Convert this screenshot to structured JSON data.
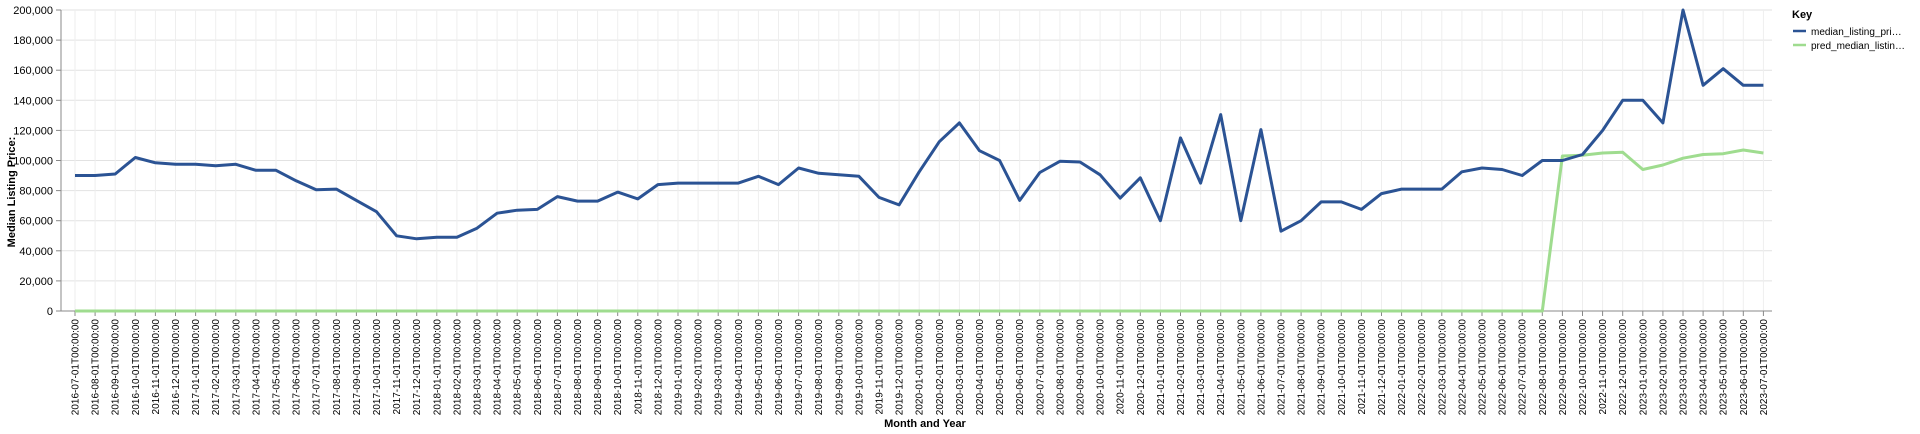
{
  "chart_data": {
    "type": "line",
    "xlabel": "Month and Year",
    "ylabel": "Median Listing Price:",
    "ylim": [
      0,
      200000
    ],
    "yticks": [
      "0",
      "20,000",
      "40,000",
      "60,000",
      "80,000",
      "100,000",
      "120,000",
      "140,000",
      "160,000",
      "180,000",
      "200,000"
    ],
    "grid": true,
    "legend": {
      "title": "Key",
      "position": "top-right"
    },
    "x": [
      "2016-07-01T00:00:00",
      "2016-08-01T00:00:00",
      "2016-09-01T00:00:00",
      "2016-10-01T00:00:00",
      "2016-11-01T00:00:00",
      "2016-12-01T00:00:00",
      "2017-01-01T00:00:00",
      "2017-02-01T00:00:00",
      "2017-03-01T00:00:00",
      "2017-04-01T00:00:00",
      "2017-05-01T00:00:00",
      "2017-06-01T00:00:00",
      "2017-07-01T00:00:00",
      "2017-08-01T00:00:00",
      "2017-09-01T00:00:00",
      "2017-10-01T00:00:00",
      "2017-11-01T00:00:00",
      "2017-12-01T00:00:00",
      "2018-01-01T00:00:00",
      "2018-02-01T00:00:00",
      "2018-03-01T00:00:00",
      "2018-04-01T00:00:00",
      "2018-05-01T00:00:00",
      "2018-06-01T00:00:00",
      "2018-07-01T00:00:00",
      "2018-08-01T00:00:00",
      "2018-09-01T00:00:00",
      "2018-10-01T00:00:00",
      "2018-11-01T00:00:00",
      "2018-12-01T00:00:00",
      "2019-01-01T00:00:00",
      "2019-02-01T00:00:00",
      "2019-03-01T00:00:00",
      "2019-04-01T00:00:00",
      "2019-05-01T00:00:00",
      "2019-06-01T00:00:00",
      "2019-07-01T00:00:00",
      "2019-08-01T00:00:00",
      "2019-09-01T00:00:00",
      "2019-10-01T00:00:00",
      "2019-11-01T00:00:00",
      "2019-12-01T00:00:00",
      "2020-01-01T00:00:00",
      "2020-02-01T00:00:00",
      "2020-03-01T00:00:00",
      "2020-04-01T00:00:00",
      "2020-05-01T00:00:00",
      "2020-06-01T00:00:00",
      "2020-07-01T00:00:00",
      "2020-08-01T00:00:00",
      "2020-09-01T00:00:00",
      "2020-10-01T00:00:00",
      "2020-11-01T00:00:00",
      "2020-12-01T00:00:00",
      "2021-01-01T00:00:00",
      "2021-02-01T00:00:00",
      "2021-03-01T00:00:00",
      "2021-04-01T00:00:00",
      "2021-05-01T00:00:00",
      "2021-06-01T00:00:00",
      "2021-07-01T00:00:00",
      "2021-08-01T00:00:00",
      "2021-09-01T00:00:00",
      "2021-10-01T00:00:00",
      "2021-11-01T00:00:00",
      "2021-12-01T00:00:00",
      "2022-01-01T00:00:00",
      "2022-02-01T00:00:00",
      "2022-03-01T00:00:00",
      "2022-04-01T00:00:00",
      "2022-05-01T00:00:00",
      "2022-06-01T00:00:00",
      "2022-07-01T00:00:00",
      "2022-08-01T00:00:00",
      "2022-09-01T00:00:00",
      "2022-10-01T00:00:00",
      "2022-11-01T00:00:00",
      "2022-12-01T00:00:00",
      "2023-01-01T00:00:00",
      "2023-02-01T00:00:00",
      "2023-03-01T00:00:00",
      "2023-04-01T00:00:00",
      "2023-05-01T00:00:00",
      "2023-06-01T00:00:00",
      "2023-07-01T00:00:00"
    ],
    "series": [
      {
        "name": "median_listing_pri…",
        "color": "#2b5394",
        "values": [
          90000,
          90000,
          91000,
          102000,
          98500,
          97500,
          97500,
          96500,
          97500,
          93500,
          93500,
          86500,
          80500,
          81000,
          73500,
          66000,
          50000,
          48000,
          49000,
          49000,
          55000,
          65000,
          67000,
          67500,
          76000,
          73000,
          73000,
          79000,
          74500,
          84000,
          85000,
          85000,
          85000,
          85000,
          89500,
          84000,
          95000,
          91500,
          90500,
          89500,
          75500,
          70500,
          92500,
          112500,
          125000,
          106500,
          100000,
          73500,
          92000,
          99500,
          99000,
          90500,
          75000,
          88500,
          60000,
          115000,
          85000,
          130500,
          60000,
          120500,
          53000,
          60000,
          72500,
          72500,
          67500,
          78000,
          81000,
          81000,
          81000,
          92500,
          95000,
          94000,
          90000,
          100000,
          100000,
          104000,
          120000,
          140000,
          140000,
          125000,
          200000,
          150000,
          161000,
          150000,
          150000
        ]
      },
      {
        "name": "pred_median_listin…",
        "color": "#9fdc8f",
        "values": [
          0,
          0,
          0,
          0,
          0,
          0,
          0,
          0,
          0,
          0,
          0,
          0,
          0,
          0,
          0,
          0,
          0,
          0,
          0,
          0,
          0,
          0,
          0,
          0,
          0,
          0,
          0,
          0,
          0,
          0,
          0,
          0,
          0,
          0,
          0,
          0,
          0,
          0,
          0,
          0,
          0,
          0,
          0,
          0,
          0,
          0,
          0,
          0,
          0,
          0,
          0,
          0,
          0,
          0,
          0,
          0,
          0,
          0,
          0,
          0,
          0,
          0,
          0,
          0,
          0,
          0,
          0,
          0,
          0,
          0,
          0,
          0,
          0,
          0,
          103000,
          103500,
          105000,
          105500,
          94000,
          97000,
          101500,
          104000,
          104500,
          107000,
          105000
        ]
      }
    ]
  }
}
